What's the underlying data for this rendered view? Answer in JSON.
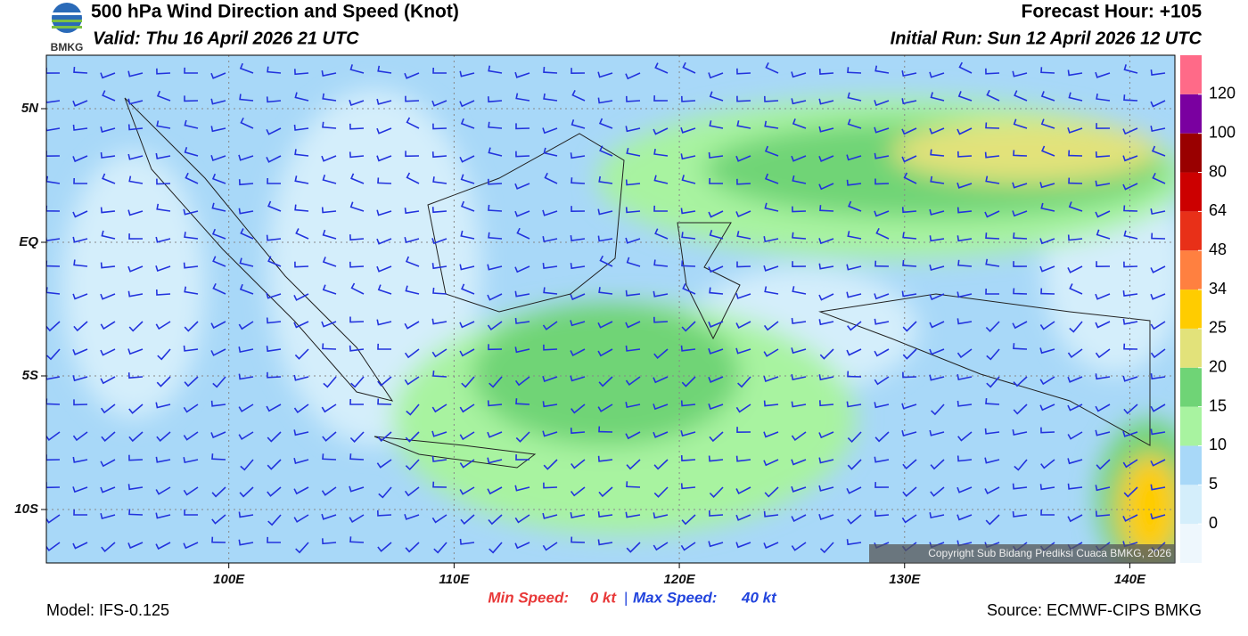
{
  "header": {
    "logo_text": "BMKG",
    "title": "500 hPa Wind Direction and Speed (Knot)",
    "valid": "Valid: Thu 16 April 2026 21 UTC",
    "forecast_hour": "Forecast Hour: +105",
    "initial_run": "Initial Run: Sun 12 April 2026 12 UTC"
  },
  "map": {
    "xlim": [
      91.9,
      142
    ],
    "ylim": [
      -12,
      7
    ],
    "xticks": [
      {
        "value": 100,
        "label": "100E"
      },
      {
        "value": 110,
        "label": "110E"
      },
      {
        "value": 120,
        "label": "120E"
      },
      {
        "value": 130,
        "label": "130E"
      },
      {
        "value": 140,
        "label": "140E"
      }
    ],
    "yticks": [
      {
        "value": 5,
        "label": "5N"
      },
      {
        "value": 0,
        "label": "EQ"
      },
      {
        "value": -5,
        "label": "5S"
      },
      {
        "value": -10,
        "label": "10S"
      }
    ],
    "copyright": "Copyright Sub Bidang Prediksi Cuaca BMKG, 2026"
  },
  "colorbar": {
    "colors": [
      "#eef7fd",
      "#d4eefb",
      "#a8d8f8",
      "#a8f3a0",
      "#6fd476",
      "#e2e27a",
      "#ffcc00",
      "#ff8040",
      "#e83018",
      "#cc0000",
      "#990000",
      "#7a00a0",
      "#ff6a88"
    ],
    "ticks": [
      0,
      5,
      10,
      15,
      20,
      25,
      34,
      48,
      64,
      80,
      100,
      120
    ]
  },
  "footer": {
    "min_label": "Min Speed:",
    "min_value": "0 kt",
    "separator": "|",
    "max_label": "Max Speed:",
    "max_value": "40 kt",
    "model": "Model: IFS-0.125",
    "source": "Source: ECMWF-CIPS BMKG"
  }
}
